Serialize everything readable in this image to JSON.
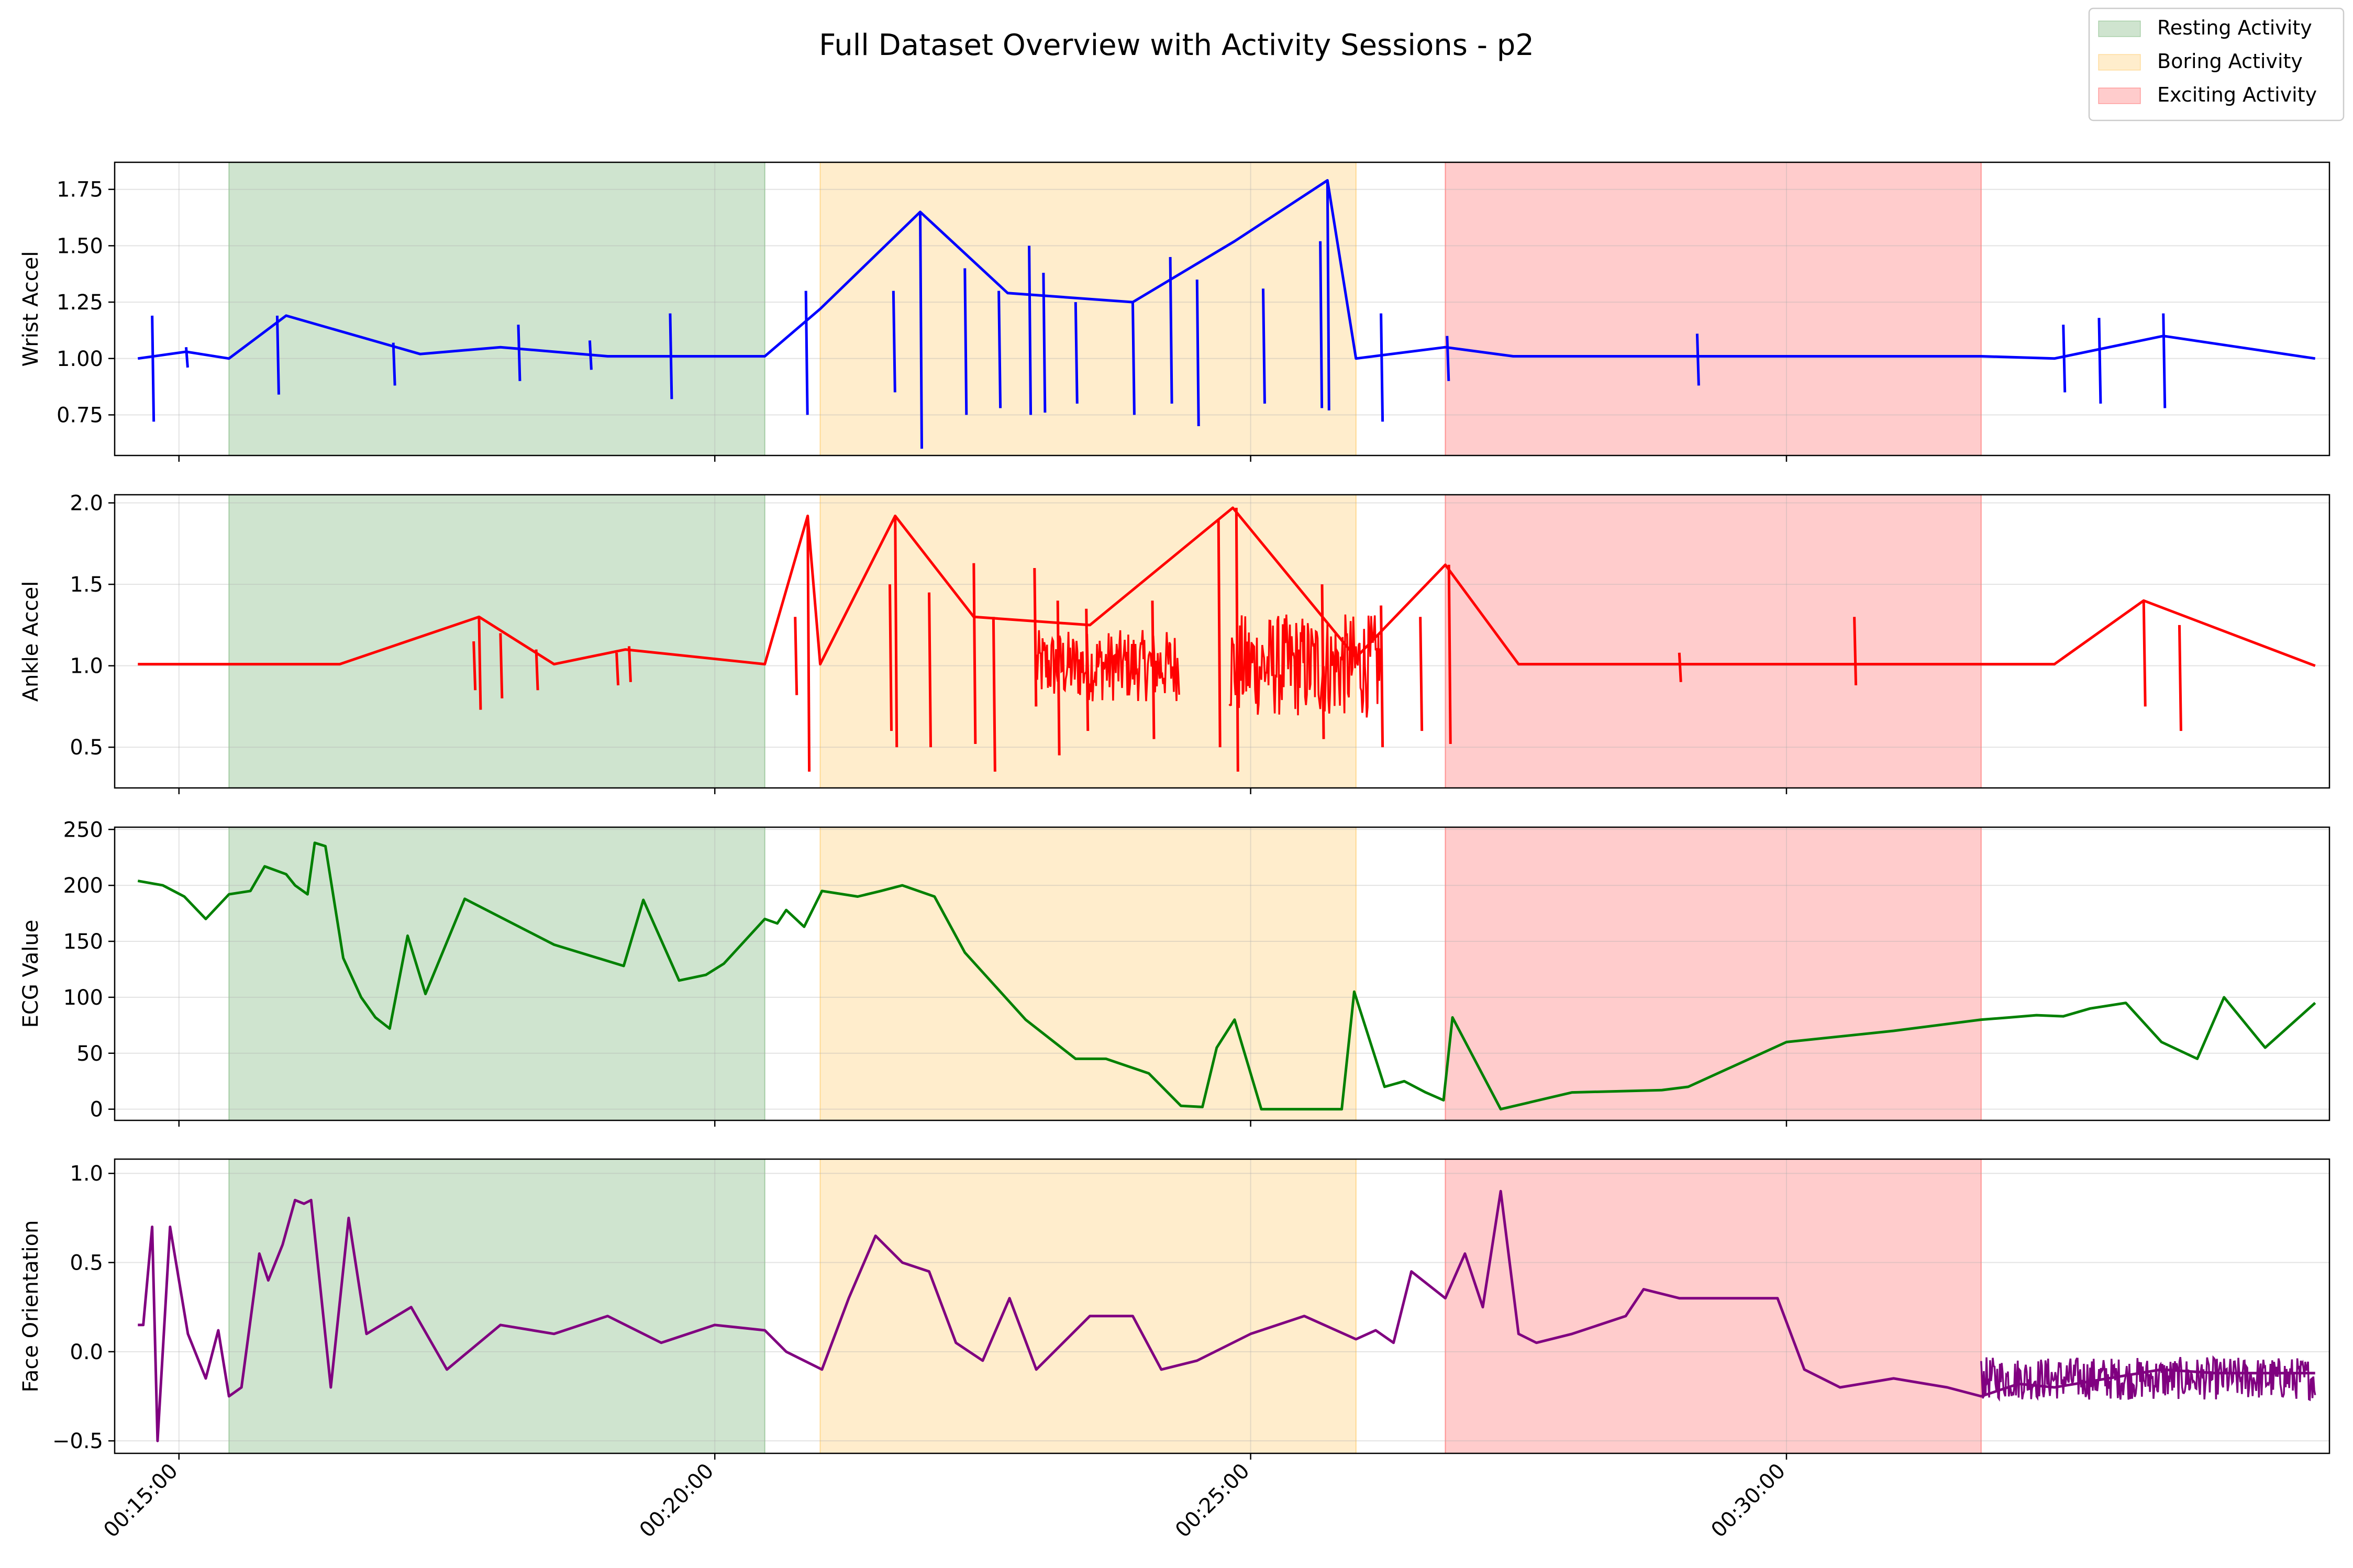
{
  "chart_data": {
    "type": "line",
    "title": "Full Dataset Overview with Activity Sessions - p2",
    "x_axis": {
      "unit": "time (HH:MM:SS)",
      "range": [
        "00:14:24",
        "00:35:04"
      ],
      "ticks": [
        "00:15:00",
        "00:20:00",
        "00:25:00",
        "00:30:00"
      ],
      "tick_rotation_deg": 45,
      "shared": true
    },
    "grid": true,
    "legend": {
      "placement": "top-right",
      "entries": [
        {
          "label": "Resting Activity",
          "color": "#2e8b2e"
        },
        {
          "label": "Boring Activity",
          "color": "#ffa500"
        },
        {
          "label": "Exciting Activity",
          "color": "#ff0000"
        }
      ]
    },
    "sessions": [
      {
        "label": "Resting Activity",
        "start": "00:15:28",
        "end": "00:20:28",
        "color": "#2e8b2e",
        "alpha": 0.23
      },
      {
        "label": "Boring Activity",
        "start": "00:20:59",
        "end": "00:25:59",
        "color": "#ffa500",
        "alpha": 0.2
      },
      {
        "label": "Exciting Activity",
        "start": "00:26:49",
        "end": "00:31:49",
        "color": "#ff0000",
        "alpha": 0.2
      }
    ],
    "panels": [
      {
        "ylabel": "Wrist Accel",
        "color": "#0000ff",
        "ylim": [
          0.57,
          1.87
        ],
        "yticks": [
          "0.75",
          "1.00",
          "1.25",
          "1.50",
          "1.75"
        ],
        "series": {
          "x": [
            "00:14:37",
            "00:15:04",
            "00:15:28",
            "00:16:00",
            "00:17:15",
            "00:18:00",
            "00:19:00",
            "00:20:28",
            "00:20:59",
            "00:21:55",
            "00:22:44",
            "00:23:54",
            "00:24:51",
            "00:25:43",
            "00:25:59",
            "00:26:49",
            "00:27:27",
            "00:28:50",
            "00:30:00",
            "00:31:49",
            "00:32:30",
            "00:33:31",
            "00:34:56"
          ],
          "y": [
            1.0,
            1.03,
            1.0,
            1.19,
            1.02,
            1.05,
            1.01,
            1.01,
            1.22,
            1.65,
            1.29,
            1.25,
            1.52,
            1.79,
            1.0,
            1.05,
            1.01,
            1.01,
            1.01,
            1.01,
            1.0,
            1.1,
            1.0
          ]
        },
        "spikes": {
          "x": [
            "00:14:45",
            "00:15:04",
            "00:15:55",
            "00:17:00",
            "00:18:10",
            "00:18:50",
            "00:19:35",
            "00:20:51",
            "00:21:40",
            "00:21:55",
            "00:22:20",
            "00:22:39",
            "00:22:56",
            "00:23:04",
            "00:23:22",
            "00:23:54",
            "00:24:15",
            "00:24:30",
            "00:25:07",
            "00:25:39",
            "00:25:43",
            "00:26:13",
            "00:26:50",
            "00:29:10",
            "00:32:35",
            "00:32:55",
            "00:33:31"
          ],
          "top": [
            1.19,
            1.05,
            1.19,
            1.07,
            1.15,
            1.08,
            1.2,
            1.3,
            1.3,
            1.65,
            1.4,
            1.3,
            1.5,
            1.38,
            1.25,
            1.25,
            1.45,
            1.35,
            1.31,
            1.52,
            1.79,
            1.2,
            1.1,
            1.11,
            1.15,
            1.18,
            1.2
          ],
          "bottom": [
            0.72,
            0.96,
            0.84,
            0.88,
            0.9,
            0.95,
            0.82,
            0.75,
            0.85,
            0.6,
            0.75,
            0.78,
            0.75,
            0.76,
            0.8,
            0.75,
            0.8,
            0.7,
            0.8,
            0.78,
            0.77,
            0.72,
            0.9,
            0.88,
            0.85,
            0.8,
            0.78
          ]
        }
      },
      {
        "ylabel": "Ankle Accel",
        "color": "#ff0000",
        "ylim": [
          0.25,
          2.05
        ],
        "yticks": [
          "0.5",
          "1.0",
          "1.5",
          "2.0"
        ],
        "series": {
          "x": [
            "00:14:37",
            "00:15:28",
            "00:16:30",
            "00:17:48",
            "00:18:30",
            "00:19:10",
            "00:20:28",
            "00:20:52",
            "00:20:59",
            "00:21:41",
            "00:22:25",
            "00:23:30",
            "00:24:50",
            "00:25:59",
            "00:26:49",
            "00:27:30",
            "00:29:00",
            "00:30:00",
            "00:31:49",
            "00:32:30",
            "00:33:20",
            "00:34:56"
          ],
          "y": [
            1.01,
            1.01,
            1.01,
            1.3,
            1.01,
            1.1,
            1.01,
            1.92,
            1.01,
            1.92,
            1.3,
            1.25,
            1.97,
            1.05,
            1.62,
            1.01,
            1.01,
            1.01,
            1.01,
            1.01,
            1.4,
            1.0
          ]
        },
        "spikes": {
          "x": [
            "00:17:45",
            "00:17:48",
            "00:18:00",
            "00:18:20",
            "00:19:05",
            "00:19:12",
            "00:20:45",
            "00:20:52",
            "00:21:38",
            "00:21:41",
            "00:22:00",
            "00:22:25",
            "00:22:36",
            "00:22:59",
            "00:23:12",
            "00:23:28",
            "00:24:05",
            "00:24:42",
            "00:24:52",
            "00:25:40",
            "00:26:13",
            "00:26:35",
            "00:26:51",
            "00:29:00",
            "00:30:38",
            "00:33:20",
            "00:33:40"
          ],
          "top": [
            1.15,
            1.3,
            1.2,
            1.1,
            1.08,
            1.12,
            1.3,
            1.92,
            1.5,
            1.92,
            1.45,
            1.63,
            1.3,
            1.6,
            1.4,
            1.35,
            1.4,
            1.9,
            1.97,
            1.5,
            1.37,
            1.3,
            1.62,
            1.08,
            1.3,
            1.4,
            1.25
          ],
          "bottom": [
            0.85,
            0.73,
            0.8,
            0.85,
            0.88,
            0.9,
            0.82,
            0.35,
            0.6,
            0.5,
            0.5,
            0.52,
            0.35,
            0.75,
            0.45,
            0.6,
            0.55,
            0.5,
            0.35,
            0.55,
            0.5,
            0.6,
            0.52,
            0.9,
            0.88,
            0.75,
            0.6
          ]
        },
        "dense_bands": [
          {
            "start": "00:23:00",
            "end": "00:24:20",
            "center": 1.0,
            "amplitude": 0.22
          },
          {
            "start": "00:24:48",
            "end": "00:26:13",
            "center": 1.0,
            "amplitude": 0.32
          }
        ]
      },
      {
        "ylabel": "ECG Value",
        "color": "#008000",
        "ylim": [
          -10,
          252
        ],
        "yticks": [
          "0",
          "50",
          "100",
          "150",
          "200",
          "250"
        ],
        "series": {
          "x": [
            "00:14:37",
            "00:14:51",
            "00:15:03",
            "00:15:15",
            "00:15:28",
            "00:15:40",
            "00:15:48",
            "00:16:00",
            "00:16:05",
            "00:16:12",
            "00:16:16",
            "00:16:22",
            "00:16:32",
            "00:16:42",
            "00:16:50",
            "00:16:58",
            "00:17:08",
            "00:17:18",
            "00:17:40",
            "00:18:30",
            "00:19:09",
            "00:19:20",
            "00:19:40",
            "00:19:55",
            "00:20:05",
            "00:20:28",
            "00:20:35",
            "00:20:40",
            "00:20:50",
            "00:21:00",
            "00:21:20",
            "00:21:33",
            "00:21:45",
            "00:22:03",
            "00:22:20",
            "00:22:37",
            "00:22:54",
            "00:23:22",
            "00:23:39",
            "00:24:03",
            "00:24:21",
            "00:24:33",
            "00:24:41",
            "00:24:51",
            "00:25:06",
            "00:25:51",
            "00:25:58",
            "00:26:15",
            "00:26:26",
            "00:26:38",
            "00:26:48",
            "00:26:53",
            "00:27:20",
            "00:28:00",
            "00:28:50",
            "00:29:05",
            "00:30:00",
            "00:31:00",
            "00:31:49",
            "00:32:05",
            "00:32:20",
            "00:32:35",
            "00:32:50",
            "00:33:10",
            "00:33:30",
            "00:33:50",
            "00:34:05",
            "00:34:28",
            "00:34:56"
          ],
          "y": [
            204,
            200,
            190,
            170,
            192,
            195,
            217,
            210,
            200,
            192,
            238,
            235,
            135,
            100,
            82,
            72,
            155,
            103,
            188,
            147,
            128,
            187,
            115,
            120,
            130,
            170,
            166,
            178,
            163,
            195,
            190,
            195,
            200,
            190,
            140,
            110,
            80,
            45,
            45,
            32,
            3,
            2,
            55,
            80,
            0,
            0,
            105,
            20,
            25,
            15,
            8,
            82,
            0,
            15,
            17,
            20,
            60,
            70,
            80,
            82,
            84,
            83,
            90,
            95,
            60,
            45,
            100,
            55,
            95
          ]
        }
      },
      {
        "ylabel": "Face Orientation",
        "color": "#800080",
        "ylim": [
          -0.57,
          1.08
        ],
        "yticks": [
          "−0.5",
          "0.0",
          "0.5",
          "1.0"
        ],
        "series": {
          "x": [
            "00:14:37",
            "00:14:40",
            "00:14:45",
            "00:14:48",
            "00:14:55",
            "00:15:05",
            "00:15:15",
            "00:15:22",
            "00:15:28",
            "00:15:35",
            "00:15:45",
            "00:15:50",
            "00:15:58",
            "00:16:05",
            "00:16:10",
            "00:16:14",
            "00:16:25",
            "00:16:35",
            "00:16:45",
            "00:17:10",
            "00:17:30",
            "00:18:00",
            "00:18:30",
            "00:19:00",
            "00:19:30",
            "00:20:00",
            "00:20:28",
            "00:20:40",
            "00:21:00",
            "00:21:15",
            "00:21:30",
            "00:21:45",
            "00:22:00",
            "00:22:15",
            "00:22:30",
            "00:22:45",
            "00:23:00",
            "00:23:30",
            "00:23:54",
            "00:24:10",
            "00:24:30",
            "00:25:00",
            "00:25:30",
            "00:25:59",
            "00:26:10",
            "00:26:20",
            "00:26:30",
            "00:26:49",
            "00:27:00",
            "00:27:10",
            "00:27:20",
            "00:27:30",
            "00:27:40",
            "00:28:00",
            "00:28:30",
            "00:28:40",
            "00:29:00",
            "00:29:30",
            "00:29:55",
            "00:30:10",
            "00:30:30",
            "00:31:00",
            "00:31:30",
            "00:31:49",
            "00:32:10",
            "00:32:30",
            "00:33:00",
            "00:33:30",
            "00:34:00",
            "00:34:30",
            "00:34:56"
          ],
          "y": [
            0.15,
            0.15,
            0.7,
            -0.5,
            0.7,
            0.1,
            -0.15,
            0.12,
            -0.25,
            -0.2,
            0.55,
            0.4,
            0.6,
            0.85,
            0.83,
            0.85,
            -0.2,
            0.75,
            0.1,
            0.25,
            -0.1,
            0.15,
            0.1,
            0.2,
            0.05,
            0.15,
            0.12,
            0.0,
            -0.1,
            0.3,
            0.65,
            0.5,
            0.45,
            0.05,
            -0.05,
            0.3,
            -0.1,
            0.2,
            0.2,
            -0.1,
            -0.05,
            0.1,
            0.2,
            0.07,
            0.12,
            0.05,
            0.45,
            0.3,
            0.55,
            0.25,
            0.9,
            0.1,
            0.05,
            0.1,
            0.2,
            0.35,
            0.3,
            0.3,
            0.3,
            -0.1,
            -0.2,
            -0.15,
            -0.2,
            -0.25,
            -0.18,
            -0.2,
            -0.15,
            -0.1,
            -0.12,
            -0.12,
            -0.12
          ]
        },
        "dense_bands": [
          {
            "start": "00:31:49",
            "end": "00:34:56",
            "center": -0.15,
            "amplitude": 0.12
          }
        ]
      }
    ]
  }
}
